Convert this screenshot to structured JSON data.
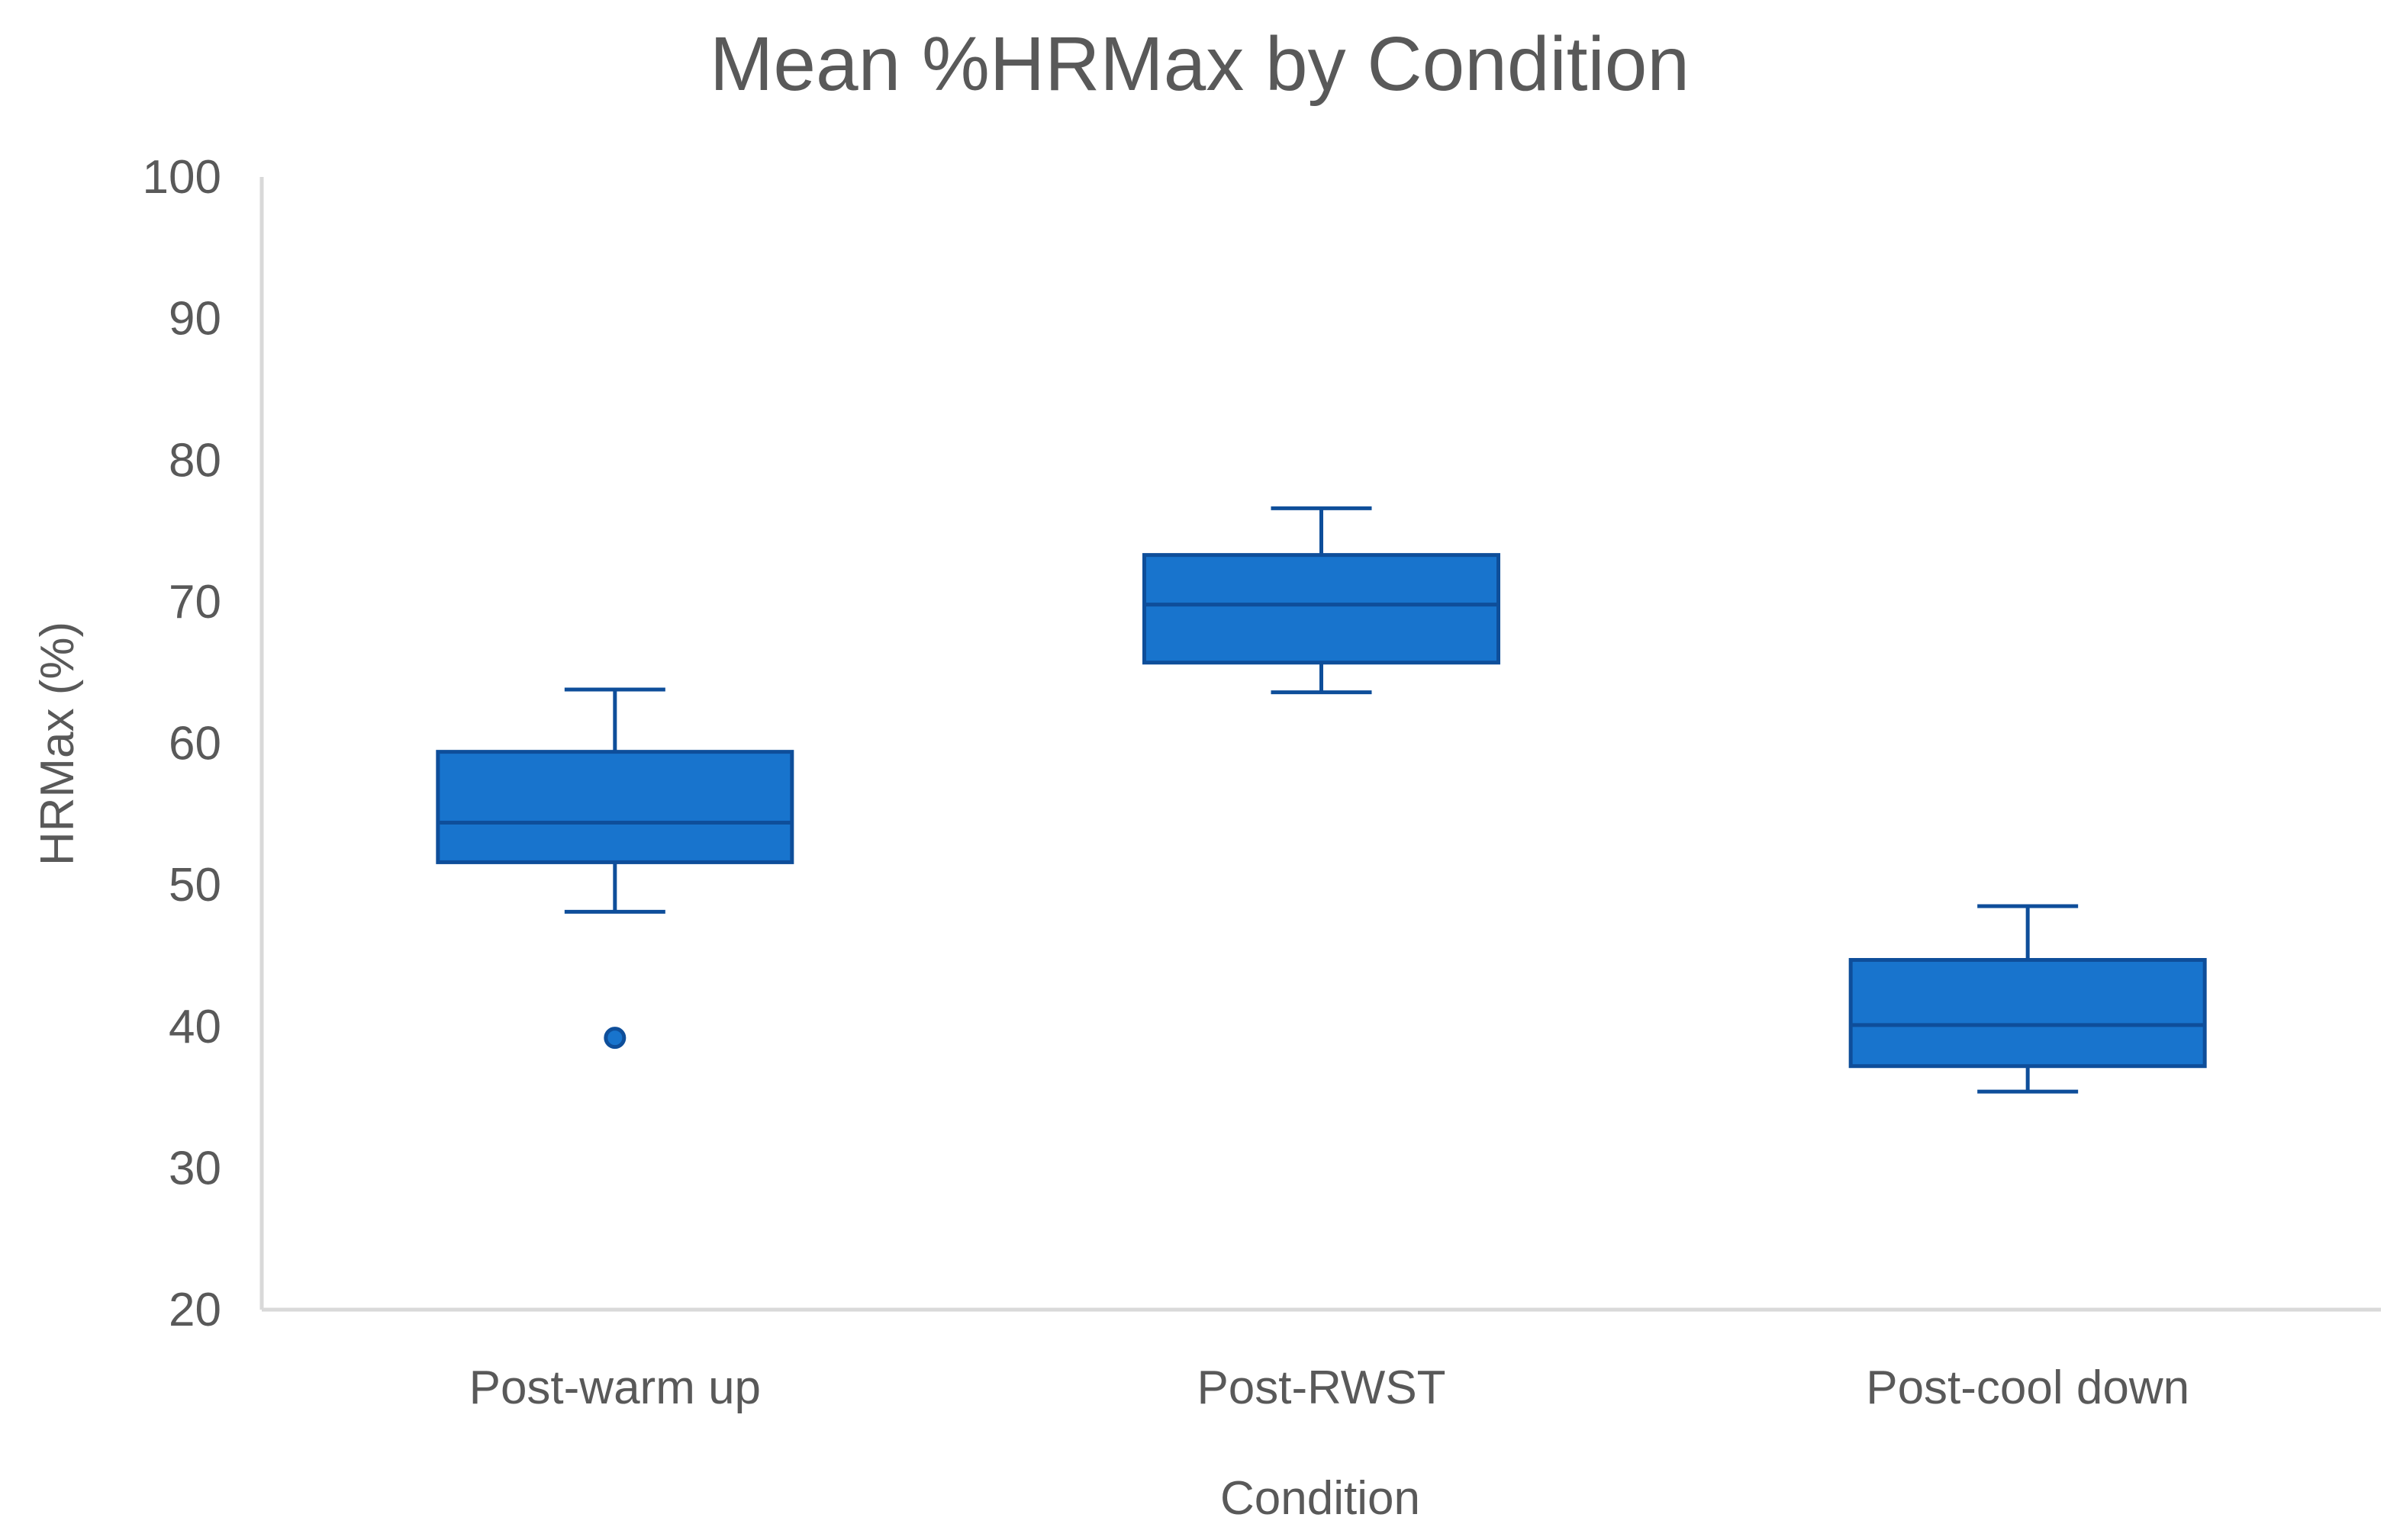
{
  "chart_data": {
    "type": "box",
    "title": "Mean %HRMax by Condition",
    "xlabel": "Condition",
    "ylabel": "HRMax (%)",
    "ylim": [
      20,
      100
    ],
    "yticks": [
      20,
      30,
      40,
      50,
      60,
      70,
      80,
      90,
      100
    ],
    "categories": [
      "Post-warm up",
      "Post-RWST",
      "Post-cool down"
    ],
    "boxes": [
      {
        "category": "Post-warm up",
        "whisker_low": 48.1,
        "q1": 51.6,
        "median": 54.4,
        "q3": 59.4,
        "whisker_high": 63.8,
        "outliers": [
          39.2
        ]
      },
      {
        "category": "Post-RWST",
        "whisker_low": 63.6,
        "q1": 65.7,
        "median": 69.8,
        "q3": 73.3,
        "whisker_high": 76.6,
        "outliers": []
      },
      {
        "category": "Post-cool down",
        "whisker_low": 35.4,
        "q1": 37.2,
        "median": 40.1,
        "q3": 44.7,
        "whisker_high": 48.5,
        "outliers": []
      }
    ],
    "grid": false,
    "legend": "none",
    "colors": {
      "box_fill": "#1874CD",
      "box_stroke": "#0E4E9A",
      "axis": "#D9D9D9"
    }
  }
}
